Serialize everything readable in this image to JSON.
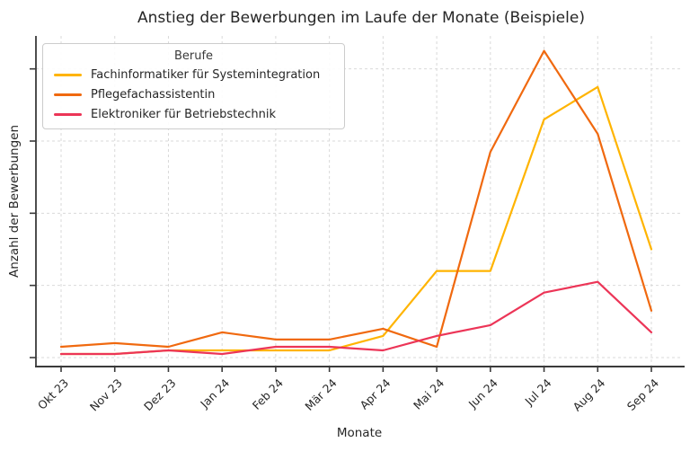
{
  "chart_data": {
    "type": "line",
    "title": "Anstieg der Bewerbungen im Laufe der Monate (Beispiele)",
    "xlabel": "Monate",
    "ylabel": "Anzahl der Bewerbungen",
    "legend_title": "Berufe",
    "legend_position": "upper left",
    "grid": true,
    "x_tick_rotation_deg": 45,
    "y_tick_labels_visible": false,
    "y_gridline_values": [
      0,
      20,
      40,
      60,
      80
    ],
    "ylim": [
      -2.5,
      89
    ],
    "categories": [
      "Okt 23",
      "Nov 23",
      "Dez 23",
      "Jan 24",
      "Feb 24",
      "Mär 24",
      "Apr 24",
      "Mai 24",
      "Jun 24",
      "Jul 24",
      "Aug 24",
      "Sep 24"
    ],
    "series": [
      {
        "name": "Fachinformatiker für Systemintegration",
        "color": "#FFB400",
        "values": [
          1,
          1,
          2,
          2,
          2,
          2,
          6,
          24,
          24,
          66,
          75,
          30
        ]
      },
      {
        "name": "Pflegefachassistentin",
        "color": "#F0690F",
        "values": [
          3,
          4,
          3,
          7,
          5,
          5,
          8,
          3,
          57,
          85,
          62,
          13
        ]
      },
      {
        "name": "Elektroniker für Betriebstechnik",
        "color": "#EC3557",
        "values": [
          1,
          1,
          2,
          1,
          3,
          3,
          2,
          6,
          9,
          18,
          21,
          7
        ]
      }
    ],
    "colors": {
      "text": "#262626",
      "spine": "#3a3a3a",
      "gridline": "#d9d9d9",
      "legend_border": "#cccccc"
    }
  }
}
